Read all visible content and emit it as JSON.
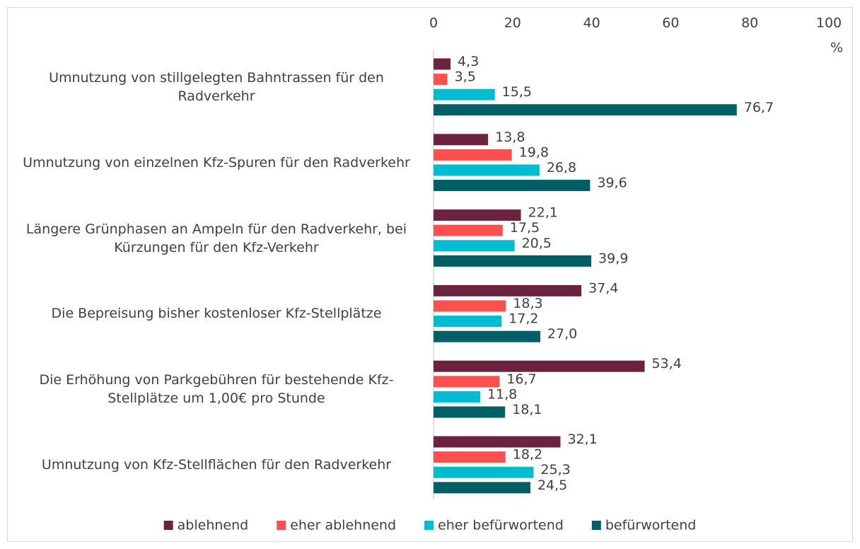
{
  "chart_data": {
    "type": "bar",
    "orientation": "horizontal",
    "x_label": "%",
    "categories": [
      "Umnutzung von stillgelegten Bahntrassen für den Radverkehr",
      "Umnutzung von einzelnen Kfz-Spuren für den Radverkehr",
      "Längere Grünphasen an Ampeln für den Radverkehr, bei Kürzungen für den Kfz-Verkehr",
      "Die Bepreisung bisher kostenloser Kfz-Stellplätze",
      "Die Erhöhung von Parkgebühren für bestehende Kfz-Stellplätze um 1,00€ pro Stunde",
      "Umnutzung von Kfz-Stellflächen für den Radverkehr"
    ],
    "series": [
      {
        "name": "ablehnend",
        "color": "#6b2340",
        "values": [
          4.3,
          13.8,
          22.1,
          37.4,
          53.4,
          32.1
        ],
        "value_labels": [
          "4,3",
          "13,8",
          "22,1",
          "37,4",
          "53,4",
          "32,1"
        ]
      },
      {
        "name": "eher ablehnend",
        "color": "#ff5050",
        "values": [
          3.5,
          19.8,
          17.5,
          18.3,
          16.7,
          18.2
        ],
        "value_labels": [
          "3,5",
          "19,8",
          "17,5",
          "18,3",
          "16,7",
          "18,2"
        ]
      },
      {
        "name": "eher befürwortend",
        "color": "#00bcd0",
        "values": [
          15.5,
          26.8,
          20.5,
          17.2,
          11.8,
          25.3
        ],
        "value_labels": [
          "15,5",
          "26,8",
          "20,5",
          "17,2",
          "11,8",
          "25,3"
        ]
      },
      {
        "name": "befürwortend",
        "color": "#005f66",
        "values": [
          76.7,
          39.6,
          39.9,
          27.0,
          18.1,
          24.5
        ],
        "value_labels": [
          "76,7",
          "39,6",
          "39,9",
          "27,0",
          "18,1",
          "24,5"
        ]
      }
    ],
    "xlim": [
      0,
      100
    ],
    "xticks": [
      0,
      20,
      40,
      60,
      80,
      100
    ],
    "legend": "bottom"
  }
}
